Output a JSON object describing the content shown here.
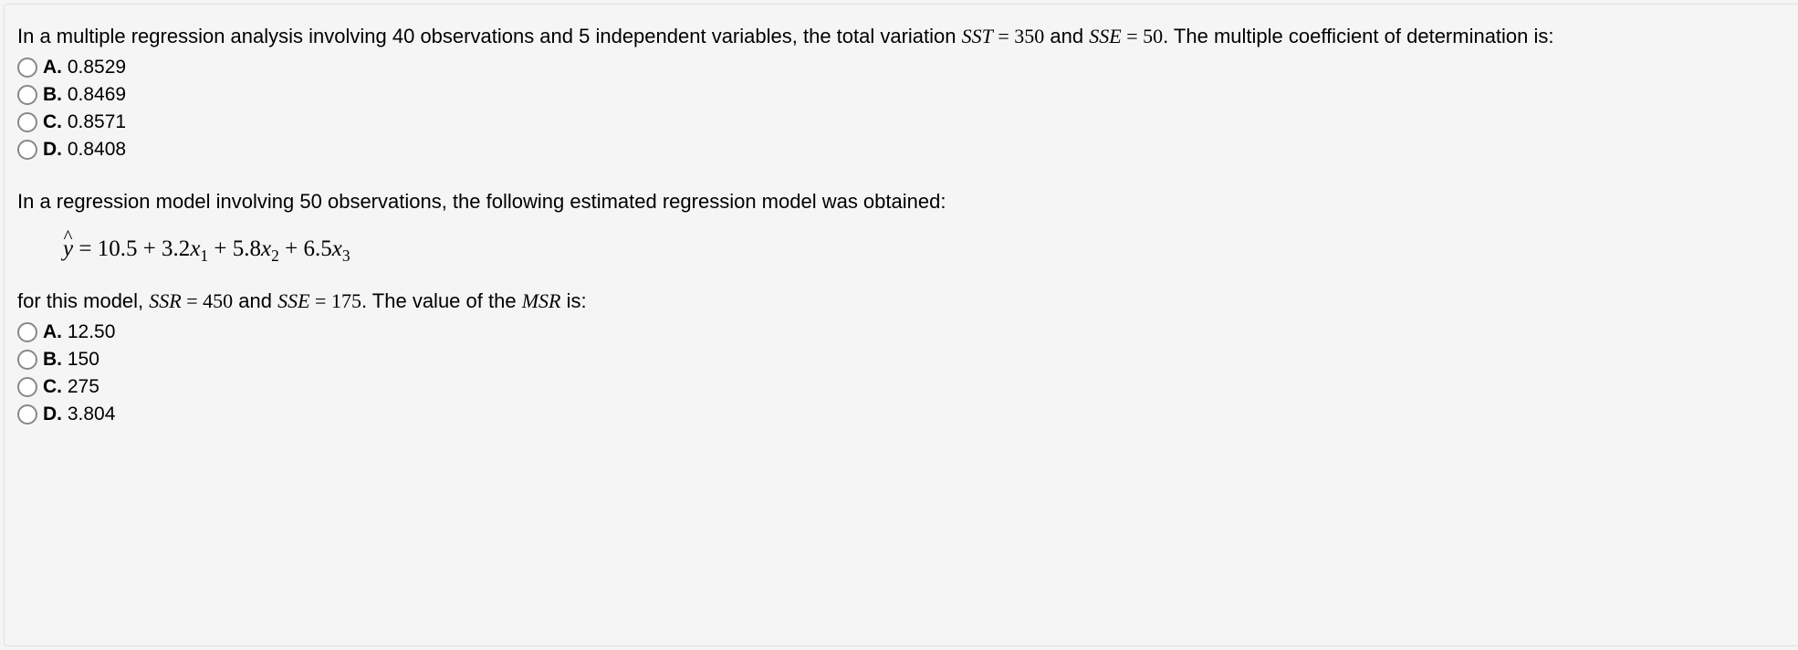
{
  "q1": {
    "text_parts": {
      "p1": "In a multiple regression analysis involving 40 observations and 5 independent variables, the total variation ",
      "sst": "SST",
      "eq1": " = 350",
      "and": " and ",
      "sse": "SSE",
      "eq2": " = 50",
      "p2": ". The multiple coefficient of determination is:"
    },
    "options": {
      "a": {
        "letter": "A.",
        "value": "0.8529"
      },
      "b": {
        "letter": "B.",
        "value": "0.8469"
      },
      "c": {
        "letter": "C.",
        "value": "0.8571"
      },
      "d": {
        "letter": "D.",
        "value": "0.8408"
      }
    }
  },
  "q2": {
    "text_parts": {
      "p1": "In a regression model involving 50 observations, the following estimated regression model was obtained:",
      "equation": "ŷ = 10.5 + 3.2x₁ + 5.8x₂ + 6.5x₃",
      "p2a": "for this model, ",
      "ssr": "SSR",
      "eq1": " = 450",
      "and": " and ",
      "sse": "SSE",
      "eq2": " = 175",
      "p2b": ". The value of the ",
      "msr": "MSR",
      "p2c": " is:"
    },
    "options": {
      "a": {
        "letter": "A.",
        "value": "12.50"
      },
      "b": {
        "letter": "B.",
        "value": "150"
      },
      "c": {
        "letter": "C.",
        "value": "275"
      },
      "d": {
        "letter": "D.",
        "value": "3.804"
      }
    }
  },
  "style": {
    "bg_color": "#f5f5f5",
    "border_color": "#e0e0e0",
    "text_color": "#000000",
    "radio_border": "#888888",
    "body_fontsize": 22,
    "option_fontsize": 21,
    "equation_fontsize": 25
  }
}
